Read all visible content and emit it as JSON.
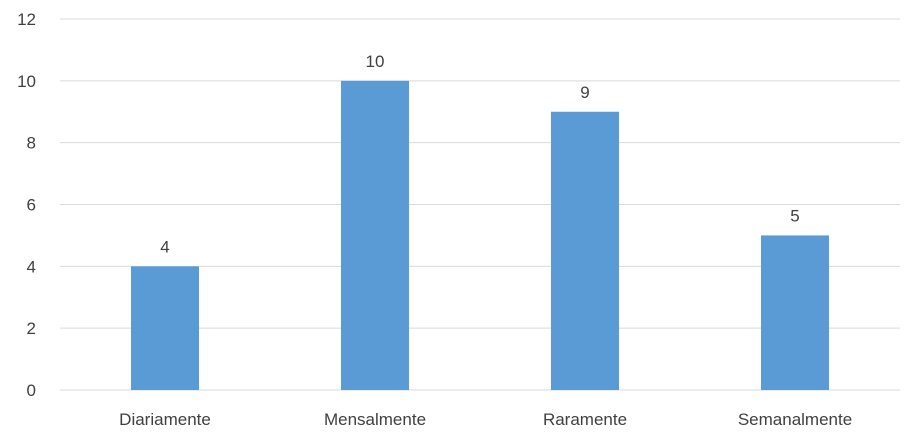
{
  "chart_data": {
    "type": "bar",
    "categories": [
      "Diariamente",
      "Mensalmente",
      "Raramente",
      "Semanalmente"
    ],
    "values": [
      4,
      10,
      9,
      5
    ],
    "title": "",
    "xlabel": "",
    "ylabel": "",
    "ylim": [
      0,
      12
    ],
    "yticks": [
      0,
      2,
      4,
      6,
      8,
      10,
      12
    ],
    "grid": true,
    "legend": "none",
    "data_labels": true,
    "bar_color": "#5b9bd5"
  }
}
